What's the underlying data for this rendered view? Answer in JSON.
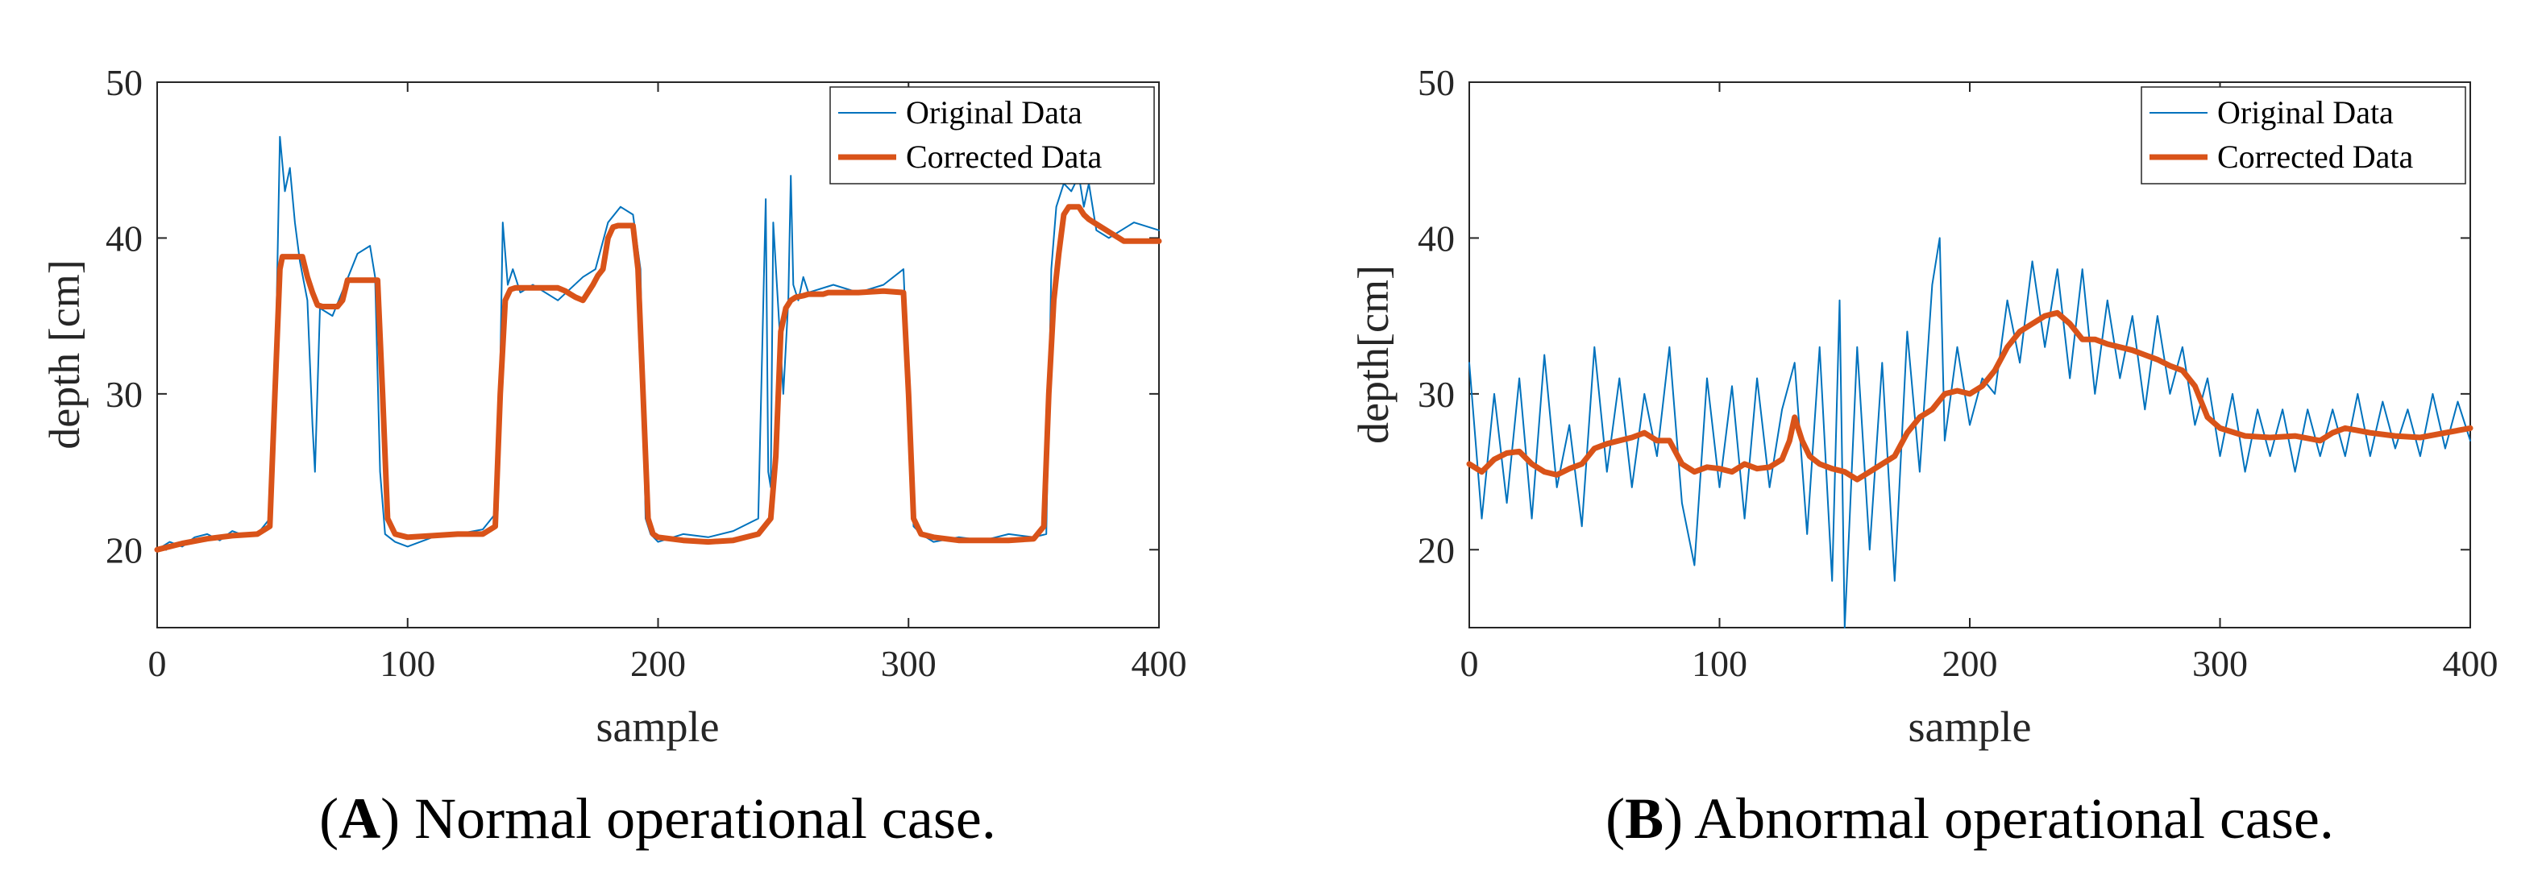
{
  "chart_data": [
    {
      "id": "A",
      "type": "line",
      "caption_letter": "A",
      "caption_text": "Normal operational case.",
      "xlabel": "sample",
      "ylabel": "depth [cm]",
      "xlim": [
        0,
        400
      ],
      "ylim": [
        15,
        50
      ],
      "xticks": [
        0,
        100,
        200,
        300,
        400
      ],
      "yticks": [
        20,
        30,
        40,
        50
      ],
      "legend": {
        "position": "top-right",
        "entries": [
          "Original Data",
          "Corrected Data"
        ]
      },
      "colors": {
        "original": "#0072BD",
        "corrected": "#D95319"
      },
      "series": [
        {
          "name": "Original Data",
          "x": [
            0,
            5,
            10,
            15,
            20,
            25,
            30,
            35,
            40,
            45,
            47,
            49,
            51,
            53,
            55,
            57,
            60,
            62,
            63,
            65,
            70,
            75,
            80,
            85,
            87,
            89,
            91,
            95,
            100,
            110,
            120,
            130,
            136,
            138,
            140,
            142,
            145,
            150,
            160,
            170,
            175,
            180,
            185,
            190,
            193,
            195,
            197,
            200,
            210,
            220,
            230,
            240,
            243,
            244,
            245,
            246,
            250,
            252,
            253,
            254,
            256,
            258,
            260,
            270,
            280,
            290,
            298,
            300,
            302,
            305,
            310,
            320,
            330,
            340,
            350,
            355,
            357,
            359,
            362,
            365,
            368,
            370,
            372,
            375,
            380,
            390,
            400
          ],
          "y": [
            20.0,
            20.5,
            20.2,
            20.8,
            21.0,
            20.6,
            21.2,
            20.9,
            21.0,
            22.0,
            30.0,
            46.5,
            43.0,
            44.5,
            41.0,
            38.5,
            36.0,
            28.0,
            25.0,
            35.5,
            35.0,
            37.0,
            39.0,
            39.5,
            37.5,
            25.0,
            21.0,
            20.5,
            20.2,
            20.8,
            21.0,
            21.3,
            22.5,
            41.0,
            37.0,
            38.0,
            36.5,
            37.0,
            36.0,
            37.5,
            38.0,
            41.0,
            42.0,
            41.5,
            38.0,
            22.0,
            21.0,
            20.5,
            21.0,
            20.8,
            21.2,
            22.0,
            42.5,
            25.0,
            24.0,
            41.0,
            30.0,
            36.0,
            44.0,
            37.0,
            36.0,
            37.5,
            36.5,
            37.0,
            36.5,
            37.0,
            38.0,
            30.0,
            21.5,
            21.0,
            20.5,
            20.8,
            20.6,
            21.0,
            20.8,
            21.0,
            38.0,
            42.0,
            43.5,
            43.0,
            44.0,
            42.0,
            43.5,
            40.5,
            40.0,
            41.0,
            40.5
          ]
        },
        {
          "name": "Corrected Data",
          "x": [
            0,
            10,
            20,
            30,
            40,
            45,
            47,
            49,
            50,
            58,
            60,
            62,
            64,
            66,
            68,
            70,
            72,
            74,
            76,
            88,
            90,
            92,
            95,
            100,
            110,
            120,
            130,
            135,
            137,
            139,
            141,
            143,
            160,
            163,
            165,
            167,
            170,
            172,
            174,
            176,
            178,
            180,
            182,
            184,
            190,
            192,
            194,
            196,
            198,
            200,
            210,
            220,
            230,
            240,
            245,
            247,
            249,
            251,
            253,
            255,
            258,
            260,
            262,
            264,
            266,
            268,
            270,
            280,
            290,
            298,
            300,
            302,
            305,
            310,
            320,
            330,
            340,
            350,
            354,
            356,
            358,
            360,
            362,
            364,
            366,
            368,
            370,
            372,
            374,
            376,
            378,
            380,
            382,
            384,
            386,
            388,
            390,
            400
          ],
          "y": [
            20.0,
            20.4,
            20.7,
            20.9,
            21.0,
            21.5,
            30.0,
            38.0,
            38.8,
            38.8,
            37.5,
            36.5,
            35.7,
            35.6,
            35.6,
            35.6,
            35.6,
            36.0,
            37.3,
            37.3,
            30.0,
            22.0,
            21.0,
            20.8,
            20.9,
            21.0,
            21.0,
            21.5,
            30.0,
            36.0,
            36.7,
            36.8,
            36.8,
            36.6,
            36.4,
            36.2,
            36.0,
            36.5,
            37.0,
            37.6,
            38.0,
            40.0,
            40.7,
            40.8,
            40.8,
            38.0,
            30.0,
            22.0,
            21.0,
            20.8,
            20.6,
            20.5,
            20.6,
            21.0,
            22.0,
            26.0,
            34.0,
            35.5,
            36.0,
            36.2,
            36.3,
            36.4,
            36.4,
            36.4,
            36.4,
            36.5,
            36.5,
            36.5,
            36.6,
            36.5,
            30.0,
            22.0,
            21.0,
            20.8,
            20.6,
            20.6,
            20.6,
            20.7,
            21.5,
            30.0,
            36.0,
            39.0,
            41.5,
            42.0,
            42.0,
            42.0,
            41.5,
            41.2,
            41.0,
            40.8,
            40.6,
            40.4,
            40.2,
            40.0,
            39.8,
            39.8,
            39.8,
            39.8
          ]
        }
      ]
    },
    {
      "id": "B",
      "type": "line",
      "caption_letter": "B",
      "caption_text": "Abnormal operational case.",
      "xlabel": "sample",
      "ylabel": "depth[cm]",
      "xlim": [
        0,
        400
      ],
      "ylim": [
        15,
        50
      ],
      "xticks": [
        0,
        100,
        200,
        300,
        400
      ],
      "yticks": [
        20,
        30,
        40,
        50
      ],
      "legend": {
        "position": "top-right",
        "entries": [
          "Original Data",
          "Corrected Data"
        ]
      },
      "colors": {
        "original": "#0072BD",
        "corrected": "#D95319"
      },
      "series": [
        {
          "name": "Original Data",
          "x": [
            0,
            5,
            10,
            15,
            20,
            25,
            30,
            35,
            40,
            45,
            50,
            55,
            60,
            65,
            70,
            75,
            80,
            85,
            90,
            95,
            100,
            105,
            110,
            115,
            120,
            125,
            130,
            135,
            140,
            145,
            148,
            150,
            152,
            155,
            160,
            165,
            170,
            175,
            180,
            185,
            188,
            190,
            195,
            200,
            205,
            210,
            215,
            220,
            225,
            230,
            235,
            240,
            245,
            250,
            255,
            260,
            265,
            270,
            275,
            280,
            285,
            290,
            295,
            300,
            305,
            310,
            315,
            320,
            325,
            330,
            335,
            340,
            345,
            350,
            355,
            360,
            365,
            370,
            375,
            380,
            385,
            390,
            395,
            400
          ],
          "y": [
            32.0,
            22.0,
            30.0,
            23.0,
            31.0,
            22.0,
            32.5,
            24.0,
            28.0,
            21.5,
            33.0,
            25.0,
            31.0,
            24.0,
            30.0,
            26.0,
            33.0,
            23.0,
            19.0,
            31.0,
            24.0,
            30.5,
            22.0,
            31.0,
            24.0,
            29.0,
            32.0,
            21.0,
            33.0,
            18.0,
            36.0,
            15.0,
            22.0,
            33.0,
            20.0,
            32.0,
            18.0,
            34.0,
            25.0,
            37.0,
            40.0,
            27.0,
            33.0,
            28.0,
            31.0,
            30.0,
            36.0,
            32.0,
            38.5,
            33.0,
            38.0,
            31.0,
            38.0,
            30.0,
            36.0,
            31.0,
            35.0,
            29.0,
            35.0,
            30.0,
            33.0,
            28.0,
            31.0,
            26.0,
            30.0,
            25.0,
            29.0,
            26.0,
            29.0,
            25.0,
            29.0,
            26.0,
            29.0,
            26.0,
            30.0,
            26.0,
            29.5,
            26.5,
            29.0,
            26.0,
            30.0,
            26.5,
            29.5,
            27.0
          ]
        },
        {
          "name": "Corrected Data",
          "x": [
            0,
            5,
            10,
            15,
            20,
            25,
            30,
            35,
            40,
            45,
            50,
            55,
            60,
            65,
            70,
            75,
            80,
            85,
            90,
            95,
            100,
            105,
            110,
            115,
            120,
            125,
            128,
            130,
            133,
            136,
            140,
            145,
            150,
            155,
            160,
            165,
            170,
            175,
            180,
            185,
            190,
            195,
            200,
            205,
            210,
            215,
            220,
            225,
            230,
            235,
            240,
            245,
            250,
            255,
            260,
            265,
            270,
            275,
            280,
            285,
            290,
            295,
            300,
            310,
            320,
            330,
            340,
            345,
            350,
            360,
            370,
            380,
            390,
            400
          ],
          "y": [
            25.5,
            25.0,
            25.8,
            26.2,
            26.3,
            25.5,
            25.0,
            24.8,
            25.2,
            25.5,
            26.5,
            26.8,
            27.0,
            27.2,
            27.5,
            27.0,
            27.0,
            25.5,
            25.0,
            25.3,
            25.2,
            25.0,
            25.5,
            25.2,
            25.3,
            25.8,
            27.0,
            28.5,
            27.0,
            26.0,
            25.5,
            25.2,
            25.0,
            24.5,
            25.0,
            25.5,
            26.0,
            27.5,
            28.5,
            29.0,
            30.0,
            30.2,
            30.0,
            30.5,
            31.5,
            33.0,
            34.0,
            34.5,
            35.0,
            35.2,
            34.5,
            33.5,
            33.5,
            33.2,
            33.0,
            32.8,
            32.5,
            32.2,
            31.8,
            31.5,
            30.5,
            28.5,
            27.8,
            27.3,
            27.2,
            27.3,
            27.0,
            27.5,
            27.8,
            27.5,
            27.3,
            27.2,
            27.5,
            27.8
          ]
        }
      ]
    }
  ]
}
